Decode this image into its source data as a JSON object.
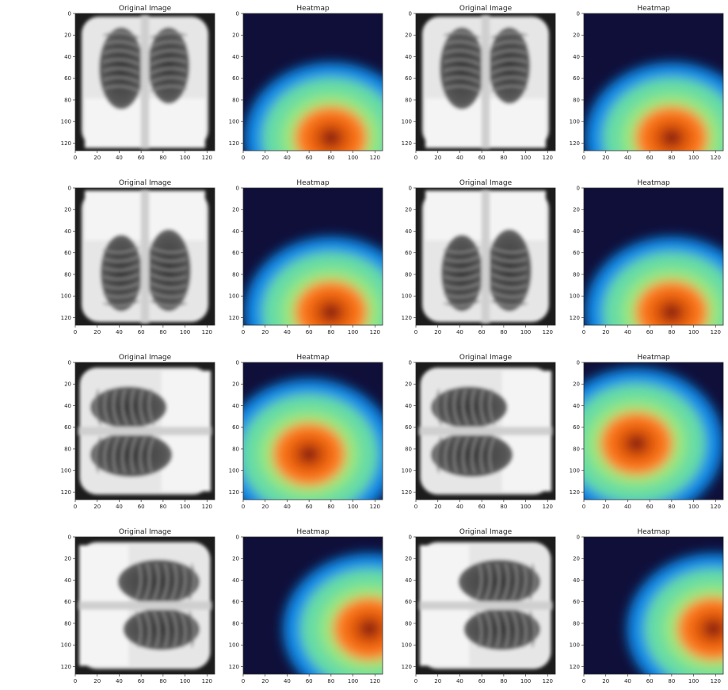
{
  "chart_data": {
    "type": "heatmap",
    "grid": false,
    "panel_titles": [
      "Original Image",
      "Heatmap"
    ],
    "xticks": [
      "0",
      "20",
      "40",
      "60",
      "80",
      "100",
      "120"
    ],
    "yticks": [
      "0",
      "20",
      "40",
      "60",
      "80",
      "100",
      "120"
    ],
    "colormaps": {
      "grayscale": [
        "#000000",
        "#ffffff"
      ],
      "heatmap": [
        "#0f0f3a",
        "#1a3a80",
        "#0a8ff0",
        "#3cb8ff",
        "#6be0a0",
        "#9ce87a",
        "#ff7a1a",
        "#e25a0a",
        "#8a1a0a"
      ]
    },
    "panels": [
      {
        "row": 0,
        "col": 0,
        "title": "Original Image",
        "kind": "xray",
        "orientation": "upright-frontal"
      },
      {
        "row": 0,
        "col": 1,
        "title": "Heatmap",
        "kind": "heatmap",
        "hotspot_center": [
          80,
          115
        ]
      },
      {
        "row": 0,
        "col": 2,
        "title": "Original Image",
        "kind": "xray",
        "orientation": "upright-frontal"
      },
      {
        "row": 0,
        "col": 3,
        "title": "Heatmap",
        "kind": "heatmap",
        "hotspot_center": [
          80,
          115
        ]
      },
      {
        "row": 1,
        "col": 0,
        "title": "Original Image",
        "kind": "xray",
        "orientation": "upside-down"
      },
      {
        "row": 1,
        "col": 1,
        "title": "Heatmap",
        "kind": "heatmap",
        "hotspot_center": [
          80,
          115
        ]
      },
      {
        "row": 1,
        "col": 2,
        "title": "Original Image",
        "kind": "xray",
        "orientation": "upside-down"
      },
      {
        "row": 1,
        "col": 3,
        "title": "Heatmap",
        "kind": "heatmap",
        "hotspot_center": [
          80,
          115
        ]
      },
      {
        "row": 2,
        "col": 0,
        "title": "Original Image",
        "kind": "xray",
        "orientation": "rotated-left"
      },
      {
        "row": 2,
        "col": 1,
        "title": "Heatmap",
        "kind": "heatmap",
        "hotspot_center": [
          60,
          85
        ]
      },
      {
        "row": 2,
        "col": 2,
        "title": "Original Image",
        "kind": "xray",
        "orientation": "rotated-left"
      },
      {
        "row": 2,
        "col": 3,
        "title": "Heatmap",
        "kind": "heatmap",
        "hotspot_center": [
          48,
          75
        ]
      },
      {
        "row": 3,
        "col": 0,
        "title": "Original Image",
        "kind": "xray",
        "orientation": "rotated-right"
      },
      {
        "row": 3,
        "col": 1,
        "title": "Heatmap",
        "kind": "heatmap",
        "hotspot_center": [
          115,
          85
        ]
      },
      {
        "row": 3,
        "col": 2,
        "title": "Original Image",
        "kind": "xray",
        "orientation": "rotated-right"
      },
      {
        "row": 3,
        "col": 3,
        "title": "Heatmap",
        "kind": "heatmap",
        "hotspot_center": [
          118,
          85
        ]
      }
    ]
  }
}
